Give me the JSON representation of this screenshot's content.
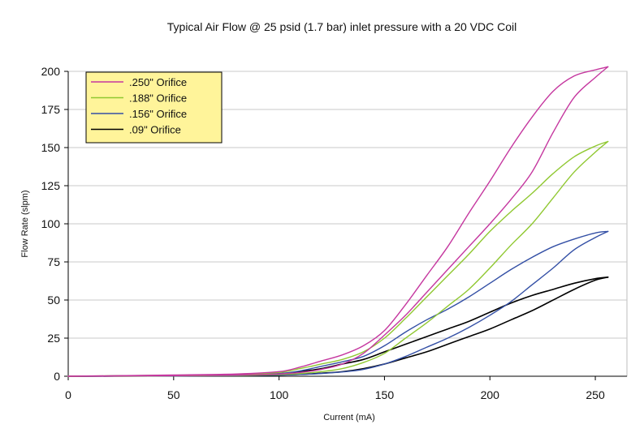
{
  "chart_data": {
    "type": "line",
    "title": "Typical Air Flow @ 25 psid (1.7 bar) inlet pressure  with a 20 VDC Coil",
    "xlabel": "Current (mA)",
    "ylabel": "Flow Rate (slpm)",
    "xlim": [
      0,
      265
    ],
    "ylim": [
      0,
      200
    ],
    "xticks": [
      0,
      50,
      100,
      150,
      200,
      250
    ],
    "yticks": [
      0,
      25,
      50,
      75,
      100,
      125,
      150,
      175,
      200
    ],
    "grid": "horizontal",
    "legend_position": "top-left",
    "series": [
      {
        "name": ".250\" Orifice",
        "color": "#c5379f",
        "up": [
          [
            0,
            0
          ],
          [
            50,
            0.8
          ],
          [
            80,
            1.5
          ],
          [
            100,
            3
          ],
          [
            110,
            6
          ],
          [
            120,
            10
          ],
          [
            130,
            14
          ],
          [
            140,
            20
          ],
          [
            150,
            30
          ],
          [
            160,
            47
          ],
          [
            170,
            66
          ],
          [
            180,
            85
          ],
          [
            190,
            107
          ],
          [
            200,
            128
          ],
          [
            210,
            150
          ],
          [
            220,
            170
          ],
          [
            230,
            187
          ],
          [
            240,
            197
          ],
          [
            250,
            201
          ],
          [
            256,
            203
          ]
        ],
        "down": [
          [
            256,
            203
          ],
          [
            250,
            196
          ],
          [
            240,
            183
          ],
          [
            230,
            160
          ],
          [
            220,
            134
          ],
          [
            210,
            116
          ],
          [
            200,
            100
          ],
          [
            190,
            85
          ],
          [
            180,
            70
          ],
          [
            170,
            55
          ],
          [
            160,
            40
          ],
          [
            150,
            27
          ],
          [
            140,
            15
          ],
          [
            130,
            8
          ],
          [
            120,
            4.5
          ],
          [
            110,
            2.5
          ],
          [
            100,
            1.5
          ],
          [
            80,
            0.8
          ],
          [
            50,
            0.4
          ],
          [
            0,
            0
          ]
        ]
      },
      {
        "name": ".188\" Orifice",
        "color": "#90c831",
        "up": [
          [
            0,
            0
          ],
          [
            50,
            0.7
          ],
          [
            80,
            1.3
          ],
          [
            100,
            2.5
          ],
          [
            110,
            5
          ],
          [
            120,
            8
          ],
          [
            130,
            11
          ],
          [
            140,
            16
          ],
          [
            150,
            25
          ],
          [
            160,
            38
          ],
          [
            170,
            52
          ],
          [
            180,
            66
          ],
          [
            190,
            80
          ],
          [
            200,
            95
          ],
          [
            210,
            108
          ],
          [
            220,
            120
          ],
          [
            230,
            133
          ],
          [
            240,
            144
          ],
          [
            250,
            151
          ],
          [
            256,
            154
          ]
        ],
        "down": [
          [
            256,
            154
          ],
          [
            250,
            147
          ],
          [
            240,
            134
          ],
          [
            230,
            117
          ],
          [
            220,
            100
          ],
          [
            210,
            86
          ],
          [
            200,
            71
          ],
          [
            190,
            57
          ],
          [
            180,
            46
          ],
          [
            170,
            35
          ],
          [
            160,
            25
          ],
          [
            150,
            15
          ],
          [
            140,
            9
          ],
          [
            130,
            5
          ],
          [
            120,
            3
          ],
          [
            110,
            1.8
          ],
          [
            100,
            1.2
          ],
          [
            80,
            0.6
          ],
          [
            50,
            0.3
          ],
          [
            0,
            0
          ]
        ]
      },
      {
        "name": ".156\" Orifice",
        "color": "#334fa5",
        "up": [
          [
            0,
            0
          ],
          [
            50,
            0.5
          ],
          [
            80,
            1
          ],
          [
            100,
            1.8
          ],
          [
            110,
            3.5
          ],
          [
            120,
            6.5
          ],
          [
            130,
            9.5
          ],
          [
            140,
            13
          ],
          [
            150,
            20
          ],
          [
            160,
            29
          ],
          [
            170,
            37
          ],
          [
            180,
            44
          ],
          [
            190,
            52
          ],
          [
            200,
            61
          ],
          [
            210,
            70
          ],
          [
            220,
            78
          ],
          [
            230,
            85
          ],
          [
            240,
            90
          ],
          [
            250,
            94
          ],
          [
            256,
            95
          ]
        ],
        "down": [
          [
            256,
            95
          ],
          [
            250,
            91
          ],
          [
            240,
            83
          ],
          [
            230,
            71
          ],
          [
            220,
            60
          ],
          [
            210,
            49
          ],
          [
            200,
            40
          ],
          [
            190,
            32
          ],
          [
            180,
            25
          ],
          [
            170,
            19
          ],
          [
            160,
            13
          ],
          [
            150,
            8
          ],
          [
            140,
            4.5
          ],
          [
            130,
            2.8
          ],
          [
            120,
            1.8
          ],
          [
            110,
            1.2
          ],
          [
            100,
            0.8
          ],
          [
            80,
            0.4
          ],
          [
            50,
            0.2
          ],
          [
            0,
            0
          ]
        ]
      },
      {
        "name": ".09\" Orifice",
        "color": "#000000",
        "up": [
          [
            0,
            0
          ],
          [
            50,
            0.4
          ],
          [
            80,
            0.8
          ],
          [
            100,
            1.5
          ],
          [
            110,
            3
          ],
          [
            120,
            5
          ],
          [
            130,
            8
          ],
          [
            140,
            11
          ],
          [
            150,
            16
          ],
          [
            160,
            21
          ],
          [
            170,
            26
          ],
          [
            180,
            31
          ],
          [
            190,
            36
          ],
          [
            200,
            42
          ],
          [
            210,
            48
          ],
          [
            220,
            53
          ],
          [
            230,
            57
          ],
          [
            240,
            61
          ],
          [
            250,
            64
          ],
          [
            256,
            65
          ]
        ],
        "down": [
          [
            256,
            65
          ],
          [
            250,
            63
          ],
          [
            240,
            57
          ],
          [
            230,
            50
          ],
          [
            220,
            43
          ],
          [
            210,
            37
          ],
          [
            200,
            31
          ],
          [
            190,
            26
          ],
          [
            180,
            21
          ],
          [
            170,
            16
          ],
          [
            160,
            12
          ],
          [
            150,
            8
          ],
          [
            140,
            5
          ],
          [
            130,
            3
          ],
          [
            120,
            2
          ],
          [
            110,
            1.2
          ],
          [
            100,
            0.8
          ],
          [
            80,
            0.4
          ],
          [
            50,
            0.2
          ],
          [
            0,
            0
          ]
        ]
      }
    ]
  }
}
